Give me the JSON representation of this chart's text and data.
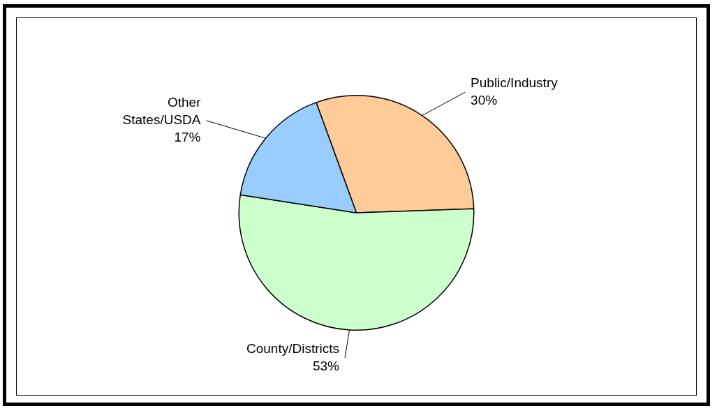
{
  "chart_data": {
    "type": "pie",
    "categories": [
      "Public/Industry",
      "County/Districts",
      "Other States/USDA"
    ],
    "values": [
      30,
      53,
      17
    ],
    "value_labels": [
      "30%",
      "53%",
      "17%"
    ],
    "colors": [
      "#ffcc99",
      "#ccffcc",
      "#99ccff"
    ],
    "legend": false
  }
}
